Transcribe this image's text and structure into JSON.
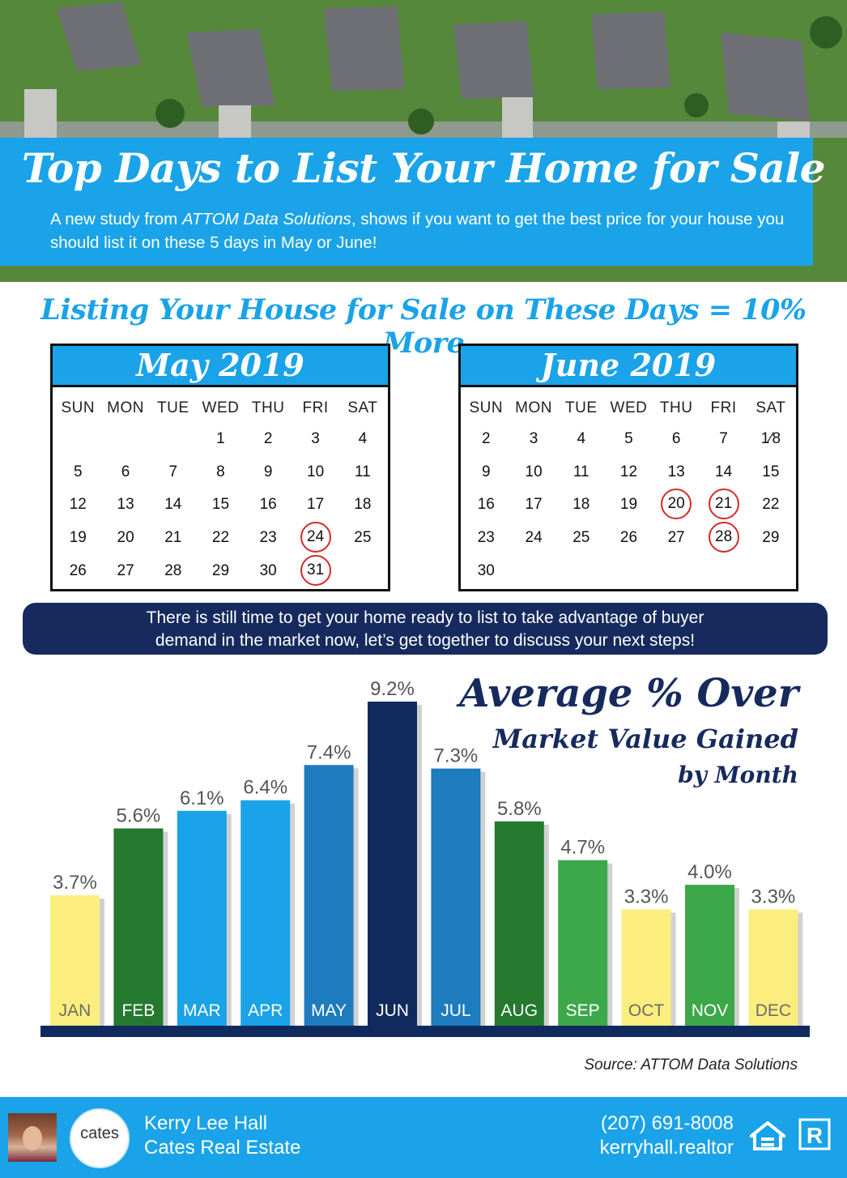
{
  "header": {
    "title": "Top Days to List Your Home for Sale",
    "subtitle_pre": "A new study from ",
    "subtitle_em": "ATTOM Data Solutions",
    "subtitle_post": ", shows if you want to get the best price for your house you should list it on these 5 days in May or June!"
  },
  "section_heading": "Listing Your House for Sale on These Days = 10% More",
  "calendars": [
    {
      "title": "May 2019",
      "weekdays": [
        "SUN",
        "MON",
        "TUE",
        "WED",
        "THU",
        "FRI",
        "SAT"
      ],
      "weeks": [
        [
          "",
          "",
          "",
          "1",
          "2",
          "3",
          "4"
        ],
        [
          "5",
          "6",
          "7",
          "8",
          "9",
          "10",
          "11"
        ],
        [
          "12",
          "13",
          "14",
          "15",
          "16",
          "17",
          "18"
        ],
        [
          "19",
          "20",
          "21",
          "22",
          "23",
          "24",
          "25"
        ],
        [
          "26",
          "27",
          "28",
          "29",
          "30",
          "31",
          ""
        ]
      ],
      "highlighted": [
        "24",
        "31"
      ]
    },
    {
      "title": "June 2019",
      "weekdays": [
        "SUN",
        "MON",
        "TUE",
        "WED",
        "THU",
        "FRI",
        "SAT"
      ],
      "weeks": [
        [
          "2",
          "3",
          "4",
          "5",
          "6",
          "7",
          "1⁄8"
        ],
        [
          "9",
          "10",
          "11",
          "12",
          "13",
          "14",
          "15"
        ],
        [
          "16",
          "17",
          "18",
          "19",
          "20",
          "21",
          "22"
        ],
        [
          "23",
          "24",
          "25",
          "26",
          "27",
          "28",
          "29"
        ],
        [
          "30",
          "",
          "",
          "",
          "",
          "",
          ""
        ]
      ],
      "highlighted": [
        "20",
        "21",
        "28"
      ]
    }
  ],
  "cta": {
    "line1": "There is still time to get your home ready to list to take advantage of buyer",
    "line2": "demand in the market now, let’s get together to discuss your next steps!"
  },
  "chart_title": {
    "line1": "Average % Over",
    "line2": "Market Value Gained",
    "line3": "by Month"
  },
  "chart_data": {
    "type": "bar",
    "categories": [
      "JAN",
      "FEB",
      "MAR",
      "APR",
      "MAY",
      "JUN",
      "JUL",
      "AUG",
      "SEP",
      "OCT",
      "NOV",
      "DEC"
    ],
    "values": [
      3.7,
      5.6,
      6.1,
      6.4,
      7.4,
      9.2,
      7.3,
      5.8,
      4.7,
      3.3,
      4.0,
      3.3
    ],
    "labels": [
      "3.7%",
      "5.6%",
      "6.1%",
      "6.4%",
      "7.4%",
      "9.2%",
      "7.3%",
      "5.8%",
      "4.7%",
      "3.3%",
      "4.0%",
      "3.3%"
    ],
    "colors": [
      "#fcee7e",
      "#24792f",
      "#1aa3e8",
      "#1aa3e8",
      "#1e7bbd",
      "#102a5e",
      "#1e7bbd",
      "#24792f",
      "#3ca84a",
      "#fcee7e",
      "#3ca84a",
      "#fcee7e"
    ],
    "label_colors": [
      "#6b6b6b",
      "#ffffff",
      "#ffffff",
      "#ffffff",
      "#ffffff",
      "#ffffff",
      "#ffffff",
      "#ffffff",
      "#ffffff",
      "#6b6b6b",
      "#ffffff",
      "#6b6b6b"
    ],
    "ylim": [
      0,
      9.2
    ],
    "grid": false,
    "legend": "none"
  },
  "source": "Source: ATTOM Data Solutions",
  "footer": {
    "agent_name": "Kerry Lee Hall",
    "company": "Cates Real Estate",
    "logo_text": "cates",
    "phone": "(207) 691-8008",
    "website": "kerryhall.realtor",
    "badge1": "EQUAL HOUSING OPPORTUNITY",
    "badge2": "REALTOR"
  },
  "colors": {
    "brand_blue": "#1aa3e8",
    "navy": "#162a5e",
    "highlight_red": "#d42a2a"
  }
}
